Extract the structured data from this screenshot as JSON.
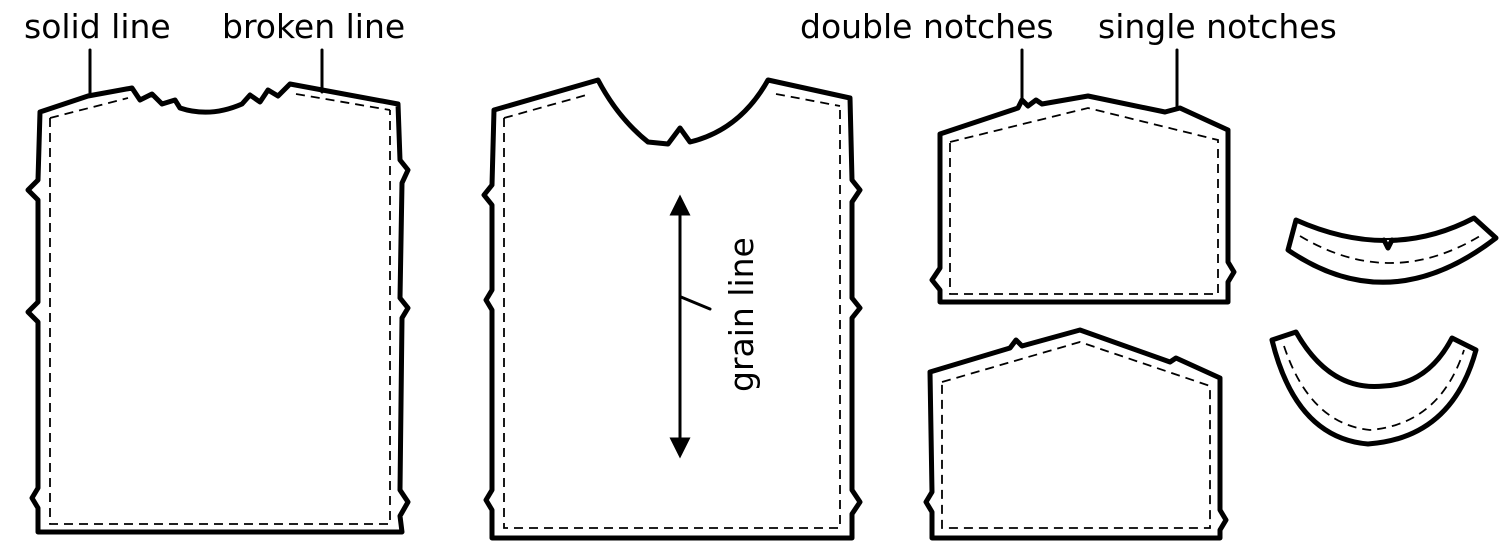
{
  "labels": {
    "solid_line": "solid line",
    "broken_line": "broken line",
    "double_notches": "double notches",
    "single_notches": "single notches",
    "grain_line": "grain line"
  },
  "colors": {
    "ink": "#000000",
    "paper": "#ffffff"
  }
}
